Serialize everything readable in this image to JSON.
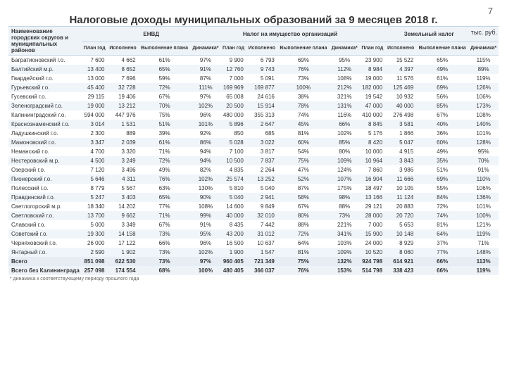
{
  "page_number": "7",
  "title": "Налоговые доходы муниципальных образований за 9 месяцев 2018 г.",
  "unit": "тыс. руб.",
  "footnote": "* динамика к соответствующему периоду прошлого года",
  "colors": {
    "header_bg": "#eef3f8",
    "row_alt_bg": "#f0f5fa",
    "totals_bg": "#e6edf4",
    "text": "#333333",
    "border": "#c5d5e5"
  },
  "columns": {
    "name_header": "Наименование городских округов и муниципальных районов",
    "groups": [
      "ЕНВД",
      "Налог на имущество организаций",
      "Земельный налог"
    ],
    "sub": [
      "План год",
      "Исполнено",
      "Выполнение плана",
      "Динамика*"
    ]
  },
  "rows": [
    {
      "name": "Багратионовский г.о.",
      "v": [
        "7 600",
        "4 662",
        "61%",
        "97%",
        "9 900",
        "6 793",
        "69%",
        "95%",
        "23 900",
        "15 522",
        "65%",
        "115%"
      ]
    },
    {
      "name": "Балтийский м.р.",
      "v": [
        "13 400",
        "8 652",
        "65%",
        "91%",
        "12 760",
        "9 743",
        "76%",
        "112%",
        "8 984",
        "4 397",
        "49%",
        "89%"
      ]
    },
    {
      "name": "Гвардейский г.о.",
      "v": [
        "13 000",
        "7 696",
        "59%",
        "87%",
        "7 000",
        "5 091",
        "73%",
        "108%",
        "19 000",
        "11 576",
        "61%",
        "119%"
      ]
    },
    {
      "name": "Гурьевский г.о.",
      "v": [
        "45 400",
        "32 728",
        "72%",
        "111%",
        "169 969",
        "169 877",
        "100%",
        "212%",
        "182 000",
        "125 469",
        "69%",
        "126%"
      ]
    },
    {
      "name": "Гусевский г.о.",
      "v": [
        "29 115",
        "19 406",
        "67%",
        "97%",
        "65 008",
        "24 616",
        "38%",
        "321%",
        "19 542",
        "10 932",
        "56%",
        "106%"
      ]
    },
    {
      "name": "Зеленоградский г.о.",
      "v": [
        "19 000",
        "13 212",
        "70%",
        "102%",
        "20 500",
        "15 914",
        "78%",
        "131%",
        "47 000",
        "40 000",
        "85%",
        "173%"
      ]
    },
    {
      "name": "Калининградский г.о.",
      "v": [
        "594 000",
        "447 976",
        "75%",
        "96%",
        "480 000",
        "355 313",
        "74%",
        "116%",
        "410 000",
        "276 498",
        "67%",
        "108%"
      ]
    },
    {
      "name": "Краснознаменский г.о.",
      "v": [
        "3 014",
        "1 531",
        "51%",
        "101%",
        "5 896",
        "2 647",
        "45%",
        "66%",
        "8 845",
        "3 581",
        "40%",
        "140%"
      ]
    },
    {
      "name": "Ладушкинский г.о.",
      "v": [
        "2 300",
        "889",
        "39%",
        "92%",
        "850",
        "685",
        "81%",
        "102%",
        "5 176",
        "1 866",
        "36%",
        "101%"
      ]
    },
    {
      "name": "Мамоновский г.о.",
      "v": [
        "3 347",
        "2 039",
        "61%",
        "86%",
        "5 028",
        "3 022",
        "60%",
        "85%",
        "8 420",
        "5 047",
        "60%",
        "128%"
      ]
    },
    {
      "name": "Неманский г.о.",
      "v": [
        "4 700",
        "3 320",
        "71%",
        "94%",
        "7 100",
        "3 817",
        "54%",
        "80%",
        "10 000",
        "4 915",
        "49%",
        "95%"
      ]
    },
    {
      "name": "Нестеровский м.р.",
      "v": [
        "4 500",
        "3 249",
        "72%",
        "94%",
        "10 500",
        "7 837",
        "75%",
        "109%",
        "10 964",
        "3 843",
        "35%",
        "70%"
      ]
    },
    {
      "name": "Озерский г.о.",
      "v": [
        "7 120",
        "3 496",
        "49%",
        "82%",
        "4 835",
        "2 264",
        "47%",
        "124%",
        "7 860",
        "3 986",
        "51%",
        "91%"
      ]
    },
    {
      "name": "Пионерский г.о.",
      "v": [
        "5 646",
        "4 311",
        "76%",
        "102%",
        "25 574",
        "13 252",
        "52%",
        "107%",
        "16 904",
        "11 666",
        "69%",
        "110%"
      ]
    },
    {
      "name": "Полесский г.о.",
      "v": [
        "8 779",
        "5 567",
        "63%",
        "130%",
        "5 810",
        "5 040",
        "87%",
        "175%",
        "18 497",
        "10 105",
        "55%",
        "106%"
      ]
    },
    {
      "name": "Правдинский г.о.",
      "v": [
        "5 247",
        "3 403",
        "65%",
        "90%",
        "5 040",
        "2 941",
        "58%",
        "98%",
        "13 166",
        "11 124",
        "84%",
        "136%"
      ]
    },
    {
      "name": "Светлогорский м.р.",
      "v": [
        "18 340",
        "14 202",
        "77%",
        "108%",
        "14 600",
        "9 849",
        "67%",
        "88%",
        "29 121",
        "20 883",
        "72%",
        "101%"
      ]
    },
    {
      "name": "Светловский г.о.",
      "v": [
        "13 700",
        "9 662",
        "71%",
        "99%",
        "40 000",
        "32 010",
        "80%",
        "73%",
        "28 000",
        "20 720",
        "74%",
        "100%"
      ]
    },
    {
      "name": "Славский г.о.",
      "v": [
        "5 000",
        "3 349",
        "67%",
        "91%",
        "8 435",
        "7 442",
        "88%",
        "221%",
        "7 000",
        "5 653",
        "81%",
        "121%"
      ]
    },
    {
      "name": "Советский г.о.",
      "v": [
        "19 300",
        "14 158",
        "73%",
        "95%",
        "43 200",
        "31 012",
        "72%",
        "341%",
        "15 900",
        "10 148",
        "64%",
        "119%"
      ]
    },
    {
      "name": "Черняховский г.о.",
      "v": [
        "26 000",
        "17 122",
        "66%",
        "96%",
        "16 500",
        "10 637",
        "64%",
        "103%",
        "24 000",
        "8 929",
        "37%",
        "71%"
      ]
    },
    {
      "name": "Янтарный г.о.",
      "v": [
        "2 590",
        "1 902",
        "73%",
        "102%",
        "1 900",
        "1 547",
        "81%",
        "109%",
        "10 520",
        "8 060",
        "77%",
        "148%"
      ]
    }
  ],
  "totals": [
    {
      "name": "Всего",
      "v": [
        "851 098",
        "622 530",
        "73%",
        "97%",
        "960 405",
        "721 349",
        "75%",
        "132%",
        "924 798",
        "614 921",
        "66%",
        "113%"
      ]
    },
    {
      "name": "Всего без Калининграда",
      "v": [
        "257 098",
        "174 554",
        "68%",
        "100%",
        "480 405",
        "366 037",
        "76%",
        "153%",
        "514 798",
        "338 423",
        "66%",
        "119%"
      ]
    }
  ]
}
